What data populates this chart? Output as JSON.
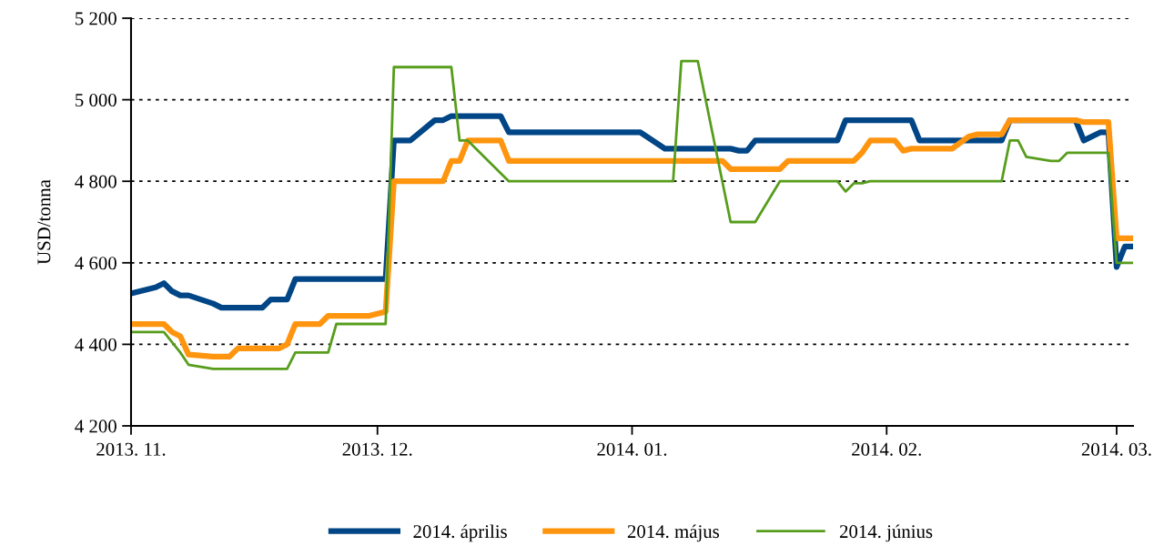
{
  "chart_data": {
    "type": "line",
    "ylabel": "USD/tonna",
    "xlim": [
      "2013-11-01",
      "2014-03-03"
    ],
    "xticks": [
      {
        "value": "2013-11-01",
        "label": "2013. 11."
      },
      {
        "value": "2013-12-01",
        "label": "2013. 12."
      },
      {
        "value": "2014-01-01",
        "label": "2014. 01."
      },
      {
        "value": "2014-02-01",
        "label": "2014. 02."
      },
      {
        "value": "2014-03-01",
        "label": "2014. 03."
      }
    ],
    "ylim": [
      4200,
      5200
    ],
    "yticks": [
      {
        "value": 4200,
        "label": "4 200"
      },
      {
        "value": 4400,
        "label": "4 400"
      },
      {
        "value": 4600,
        "label": "4 600"
      },
      {
        "value": 4800,
        "label": "4 800"
      },
      {
        "value": 5000,
        "label": "5 000"
      },
      {
        "value": 5200,
        "label": "5 200"
      }
    ],
    "grid": "y",
    "legend": "bottom",
    "line_style": "solid",
    "marker": "none",
    "series": [
      {
        "name": "2014. április",
        "color": "#004586",
        "x": [
          "2013-11-01",
          "2013-11-04",
          "2013-11-05",
          "2013-11-06",
          "2013-11-07",
          "2013-11-08",
          "2013-11-11",
          "2013-11-12",
          "2013-11-17",
          "2013-11-18",
          "2013-11-20",
          "2013-11-21",
          "2013-12-02",
          "2013-12-03",
          "2013-12-05",
          "2013-12-08",
          "2013-12-09",
          "2013-12-10",
          "2013-12-16",
          "2013-12-17",
          "2014-01-02",
          "2014-01-05",
          "2014-01-13",
          "2014-01-14",
          "2014-01-15",
          "2014-01-16",
          "2014-01-26",
          "2014-01-27",
          "2014-02-04",
          "2014-02-05",
          "2014-02-15",
          "2014-02-16",
          "2014-02-24",
          "2014-02-25",
          "2014-02-27",
          "2014-02-28",
          "2014-03-01",
          "2014-03-02",
          "2014-03-03"
        ],
        "values": [
          4525,
          4540,
          4550,
          4530,
          4520,
          4520,
          4500,
          4490,
          4490,
          4510,
          4510,
          4560,
          4560,
          4900,
          4900,
          4950,
          4950,
          4960,
          4960,
          4920,
          4920,
          4880,
          4880,
          4875,
          4875,
          4900,
          4900,
          4950,
          4950,
          4900,
          4900,
          4950,
          4950,
          4900,
          4920,
          4920,
          4590,
          4640,
          4640
        ]
      },
      {
        "name": "2014. május",
        "color": "#ff950e",
        "x": [
          "2013-11-01",
          "2013-11-05",
          "2013-11-06",
          "2013-11-07",
          "2013-11-08",
          "2013-11-11",
          "2013-11-13",
          "2013-11-14",
          "2013-11-19",
          "2013-11-20",
          "2013-11-21",
          "2013-11-24",
          "2013-11-25",
          "2013-11-30",
          "2013-12-02",
          "2013-12-03",
          "2013-12-09",
          "2013-12-10",
          "2013-12-11",
          "2013-12-12",
          "2013-12-16",
          "2013-12-17",
          "2014-01-12",
          "2014-01-13",
          "2014-01-19",
          "2014-01-20",
          "2014-01-28",
          "2014-01-29",
          "2014-01-30",
          "2014-02-02",
          "2014-02-03",
          "2014-02-04",
          "2014-02-09",
          "2014-02-11",
          "2014-02-12",
          "2014-02-15",
          "2014-02-16",
          "2014-02-24",
          "2014-02-25",
          "2014-02-28",
          "2014-03-01",
          "2014-03-03"
        ],
        "values": [
          4450,
          4450,
          4430,
          4420,
          4375,
          4370,
          4370,
          4390,
          4390,
          4400,
          4450,
          4450,
          4470,
          4470,
          4480,
          4800,
          4800,
          4850,
          4850,
          4900,
          4900,
          4850,
          4850,
          4830,
          4830,
          4850,
          4850,
          4870,
          4900,
          4900,
          4875,
          4880,
          4880,
          4910,
          4915,
          4915,
          4950,
          4950,
          4945,
          4945,
          4660,
          4660
        ]
      },
      {
        "name": "2014. június",
        "color": "#579d1c",
        "x": [
          "2013-11-01",
          "2013-11-05",
          "2013-11-07",
          "2013-11-08",
          "2013-11-11",
          "2013-11-20",
          "2013-11-21",
          "2013-11-25",
          "2013-11-26",
          "2013-12-02",
          "2013-12-03",
          "2013-12-10",
          "2013-12-11",
          "2013-12-12",
          "2013-12-17",
          "2014-01-06",
          "2014-01-07",
          "2014-01-09",
          "2014-01-13",
          "2014-01-16",
          "2014-01-19",
          "2014-01-26",
          "2014-01-27",
          "2014-01-28",
          "2014-01-29",
          "2014-01-30",
          "2014-02-15",
          "2014-02-16",
          "2014-02-17",
          "2014-02-18",
          "2014-02-21",
          "2014-02-22",
          "2014-02-23",
          "2014-02-28",
          "2014-03-01",
          "2014-03-03"
        ],
        "values": [
          4430,
          4430,
          4380,
          4350,
          4340,
          4340,
          4380,
          4380,
          4450,
          4450,
          5080,
          5080,
          4900,
          4900,
          4800,
          4800,
          5095,
          5095,
          4700,
          4700,
          4800,
          4800,
          4775,
          4795,
          4795,
          4800,
          4800,
          4900,
          4900,
          4860,
          4850,
          4850,
          4870,
          4870,
          4600,
          4600
        ]
      }
    ]
  }
}
